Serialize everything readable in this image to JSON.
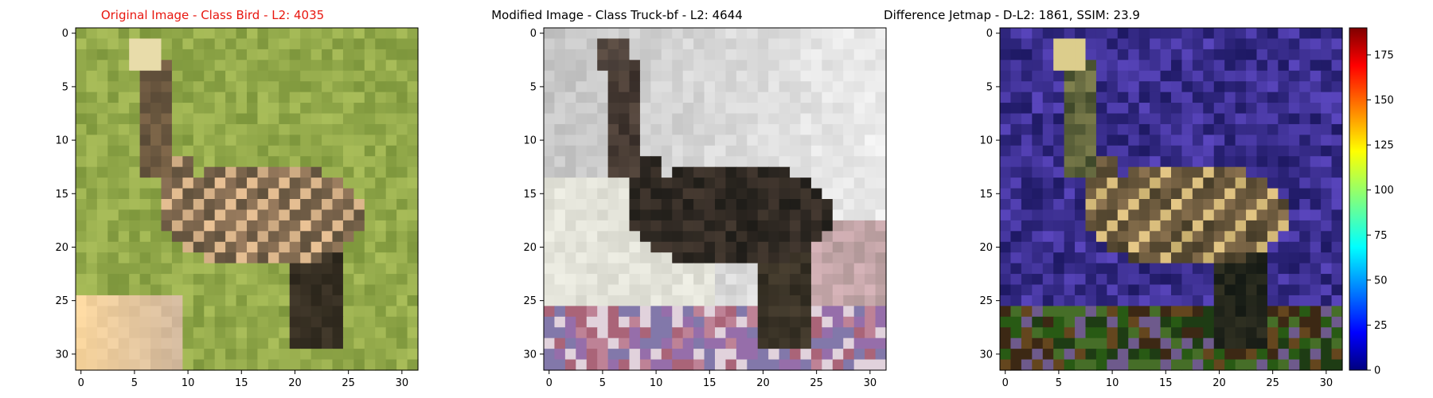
{
  "chart_data": [
    {
      "type": "heatmap",
      "title": "Original Image - Class Bird - L2: 4035",
      "title_color": "#e8170f",
      "image_size": [
        32,
        32
      ],
      "xlim": [
        -0.5,
        31.5
      ],
      "ylim": [
        31.5,
        -0.5
      ],
      "xticks": [
        0,
        5,
        10,
        15,
        20,
        25,
        30
      ],
      "yticks": [
        0,
        5,
        10,
        15,
        20,
        25,
        30
      ],
      "content": "photo-original"
    },
    {
      "type": "heatmap",
      "title": "Modified Image - Class Truck-bf - L2: 4644",
      "title_color": "#000000",
      "image_size": [
        32,
        32
      ],
      "xlim": [
        -0.5,
        31.5
      ],
      "ylim": [
        31.5,
        -0.5
      ],
      "xticks": [
        0,
        5,
        10,
        15,
        20,
        25,
        30
      ],
      "yticks": [
        0,
        5,
        10,
        15,
        20,
        25,
        30
      ],
      "content": "photo-modified"
    },
    {
      "type": "heatmap",
      "title": "Difference Jetmap - D-L2: 1861, SSIM: 23.9",
      "title_color": "#000000",
      "image_size": [
        32,
        32
      ],
      "xlim": [
        -0.5,
        31.5
      ],
      "ylim": [
        31.5,
        -0.5
      ],
      "xticks": [
        0,
        5,
        10,
        15,
        20,
        25,
        30
      ],
      "yticks": [
        0,
        5,
        10,
        15,
        20,
        25,
        30
      ],
      "content": "jet-difference",
      "colorbar": {
        "colormap": "jet",
        "range": [
          0,
          190
        ],
        "ticks": [
          0,
          25,
          50,
          75,
          100,
          125,
          150,
          175
        ]
      }
    }
  ]
}
